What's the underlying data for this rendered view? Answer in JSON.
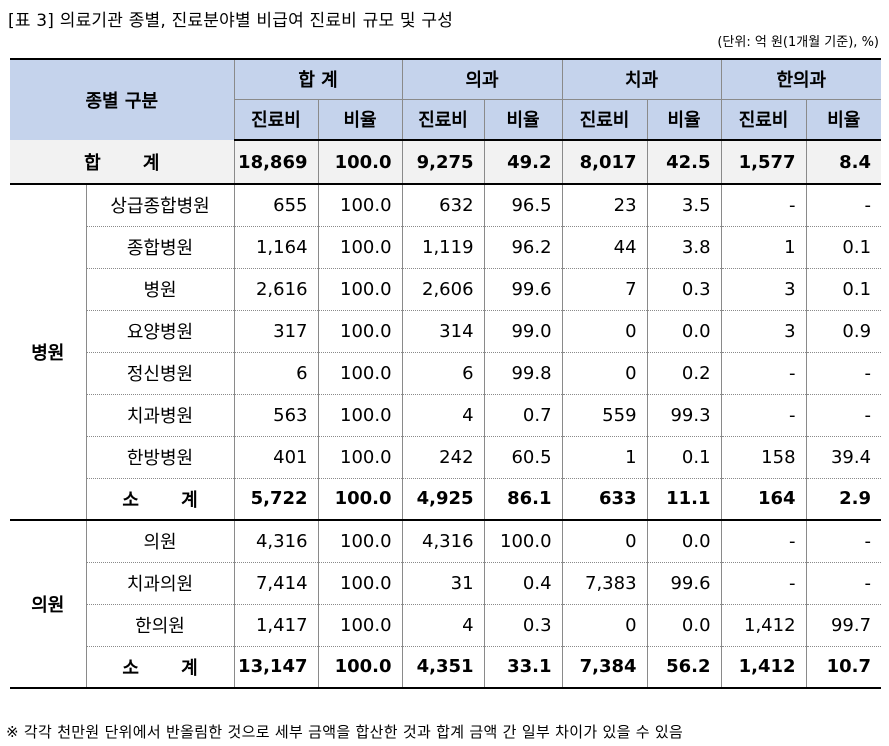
{
  "caption": "[표 3] 의료기관 종별, 진료분야별 비급여 진료비 규모 및 구성",
  "unit": "(단위: 억 원(1개월 기준), %)",
  "footnote": "※ 각각 천만원 단위에서 반올림한 것으로 세부 금액을 합산한 것과 합계 금액 간 일부 차이가 있을 수 있음",
  "header": {
    "kind": "종별 구분",
    "groups": [
      "합 계",
      "의과",
      "치과",
      "한의과"
    ],
    "cost": "진료비",
    "ratio": "비율"
  },
  "total": {
    "label": "합 계",
    "values": [
      "18,869",
      "100.0",
      "9,275",
      "49.2",
      "8,017",
      "42.5",
      "1,577",
      "8.4"
    ]
  },
  "hospital": {
    "label": "병원",
    "rows": [
      {
        "label": "상급종합병원",
        "values": [
          "655",
          "100.0",
          "632",
          "96.5",
          "23",
          "3.5",
          "-",
          "-"
        ]
      },
      {
        "label": "종합병원",
        "values": [
          "1,164",
          "100.0",
          "1,119",
          "96.2",
          "44",
          "3.8",
          "1",
          "0.1"
        ]
      },
      {
        "label": "병원",
        "values": [
          "2,616",
          "100.0",
          "2,606",
          "99.6",
          "7",
          "0.3",
          "3",
          "0.1"
        ]
      },
      {
        "label": "요양병원",
        "values": [
          "317",
          "100.0",
          "314",
          "99.0",
          "0",
          "0.0",
          "3",
          "0.9"
        ]
      },
      {
        "label": "정신병원",
        "values": [
          "6",
          "100.0",
          "6",
          "99.8",
          "0",
          "0.2",
          "-",
          "-"
        ]
      },
      {
        "label": "치과병원",
        "values": [
          "563",
          "100.0",
          "4",
          "0.7",
          "559",
          "99.3",
          "-",
          "-"
        ]
      },
      {
        "label": "한방병원",
        "values": [
          "401",
          "100.0",
          "242",
          "60.5",
          "1",
          "0.1",
          "158",
          "39.4"
        ]
      }
    ],
    "subtotal": {
      "label": "소 계",
      "values": [
        "5,722",
        "100.0",
        "4,925",
        "86.1",
        "633",
        "11.1",
        "164",
        "2.9"
      ]
    }
  },
  "clinic": {
    "label": "의원",
    "rows": [
      {
        "label": "의원",
        "values": [
          "4,316",
          "100.0",
          "4,316",
          "100.0",
          "0",
          "0.0",
          "-",
          "-"
        ]
      },
      {
        "label": "치과의원",
        "values": [
          "7,414",
          "100.0",
          "31",
          "0.4",
          "7,383",
          "99.6",
          "-",
          "-"
        ]
      },
      {
        "label": "한의원",
        "values": [
          "1,417",
          "100.0",
          "4",
          "0.3",
          "0",
          "0.0",
          "1,412",
          "99.7"
        ]
      }
    ],
    "subtotal": {
      "label": "소 계",
      "values": [
        "13,147",
        "100.0",
        "4,351",
        "33.1",
        "7,384",
        "56.2",
        "1,412",
        "10.7"
      ]
    }
  }
}
